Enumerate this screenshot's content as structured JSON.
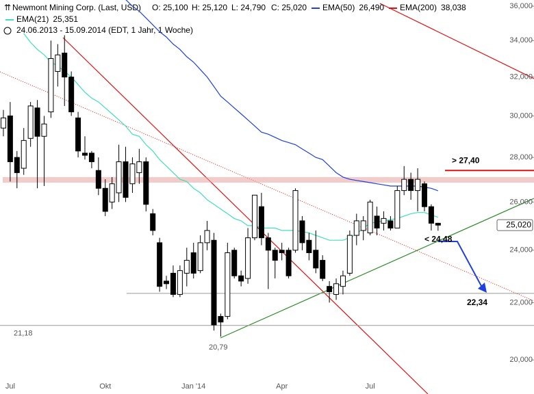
{
  "chart_data": {
    "type": "candlestick",
    "title": "Newmont Mining Corp. (Last, USD)",
    "ohlc_labels": [
      "O: 25,100",
      "H: 25,120",
      "L: 24,790",
      "C: 25,020"
    ],
    "subtitle": "24.06.2013 - 15.09.2014 (EDT, 1 Jahr, 1 Woche)",
    "categories": [
      null,
      "Jul",
      null,
      null,
      null,
      null,
      null,
      null,
      null,
      null,
      null,
      null,
      null,
      null,
      null,
      "Okt",
      null,
      null,
      null,
      null,
      null,
      null,
      null,
      null,
      null,
      null,
      null,
      null,
      "Jan '14",
      null,
      null,
      null,
      null,
      null,
      null,
      null,
      null,
      null,
      null,
      null,
      null,
      "Apr",
      null,
      null,
      null,
      null,
      null,
      null,
      null,
      null,
      null,
      null,
      null,
      null,
      "Jul",
      null,
      null,
      null,
      null,
      null,
      null,
      null,
      null,
      null,
      null
    ],
    "open": [
      29.4,
      30.0,
      28.0,
      27.5,
      28.9,
      30.4,
      29.0,
      30.2,
      32.3,
      33.3,
      32.0,
      29.9,
      28.2,
      28.2,
      27.4,
      26.6,
      26.0,
      26.4,
      27.8,
      26.8,
      27.3,
      27.8,
      25.5,
      24.3,
      22.8,
      23.1,
      22.3,
      23.1,
      23.9,
      23.2,
      24.3,
      24.4,
      21.5,
      21.5,
      24.0,
      23.0,
      22.9,
      24.5,
      25.8,
      24.5,
      24.0,
      24.0,
      24.0,
      24.0,
      25.2,
      24.4,
      24.0,
      23.6,
      22.6,
      22.3,
      22.6,
      23.1,
      24.6,
      24.8,
      24.7,
      25.4,
      25.1,
      25.2,
      24.9,
      26.5,
      27.0,
      26.5,
      26.8,
      25.8,
      25.1
    ],
    "high": [
      30.3,
      30.7,
      28.3,
      29.4,
      30.7,
      30.8,
      30.0,
      34.0,
      33.8,
      34.3,
      32.3,
      30.2,
      29.0,
      28.3,
      28.0,
      27.0,
      27.1,
      28.6,
      28.5,
      28.0,
      28.4,
      28.0,
      25.7,
      24.5,
      23.0,
      23.4,
      23.4,
      24.1,
      24.3,
      24.6,
      25.2,
      24.7,
      21.6,
      24.3,
      24.1,
      23.2,
      24.9,
      26.3,
      26.4,
      24.7,
      24.1,
      24.3,
      24.1,
      26.6,
      25.4,
      24.7,
      24.8,
      23.8,
      22.8,
      22.9,
      23.2,
      24.8,
      25.5,
      25.4,
      26.1,
      25.8,
      25.6,
      25.4,
      26.7,
      27.6,
      27.3,
      27.5,
      26.9,
      25.9,
      25.12
    ],
    "low": [
      29.0,
      26.9,
      26.6,
      27.2,
      28.5,
      26.6,
      26.7,
      29.9,
      31.5,
      30.5,
      30.0,
      28.0,
      27.9,
      27.5,
      26.3,
      25.4,
      25.7,
      26.0,
      26.0,
      26.4,
      26.8,
      25.6,
      24.6,
      22.4,
      22.5,
      22.2,
      22.2,
      22.6,
      22.9,
      23.1,
      24.0,
      21.0,
      20.79,
      21.4,
      22.9,
      22.6,
      22.7,
      24.4,
      24.2,
      22.5,
      22.9,
      23.6,
      22.9,
      23.9,
      24.0,
      23.6,
      23.1,
      22.8,
      22.0,
      22.1,
      22.3,
      23.0,
      24.2,
      24.4,
      24.6,
      24.6,
      24.8,
      24.8,
      24.9,
      26.3,
      26.1,
      25.6,
      25.6,
      24.8,
      24.79
    ],
    "close": [
      29.9,
      27.8,
      27.3,
      28.8,
      30.5,
      29.0,
      29.6,
      33.0,
      33.2,
      32.0,
      30.2,
      28.3,
      28.1,
      27.8,
      26.6,
      25.6,
      26.8,
      27.8,
      26.2,
      27.7,
      27.8,
      25.9,
      24.8,
      22.6,
      22.7,
      22.3,
      23.2,
      23.6,
      23.1,
      24.3,
      24.8,
      21.2,
      21.3,
      23.9,
      23.0,
      22.8,
      24.5,
      26.3,
      24.5,
      24.0,
      23.6,
      23.9,
      23.0,
      26.5,
      24.3,
      23.9,
      23.3,
      22.9,
      22.4,
      22.7,
      23.0,
      24.6,
      25.2,
      25.2,
      26.0,
      24.9,
      25.3,
      24.9,
      26.5,
      27.0,
      26.5,
      27.0,
      25.8,
      25.1,
      25.02
    ],
    "last_price_label": "25,020",
    "series": [
      {
        "name": "EMA(21)",
        "color": "#3fe0b8",
        "value_label": "25,351",
        "values": [
          null,
          null,
          null,
          34.4,
          33.9,
          33.5,
          33.2,
          32.8,
          32.6,
          32.3,
          32.0,
          31.6,
          31.2,
          30.9,
          30.7,
          30.4,
          30.1,
          29.8,
          29.5,
          29.1,
          29.0,
          28.6,
          28.3,
          27.9,
          27.6,
          27.3,
          27.0,
          26.9,
          26.6,
          26.4,
          26.1,
          25.9,
          25.7,
          25.5,
          25.3,
          25.2,
          25.0,
          25.0,
          24.9,
          24.9,
          24.9,
          24.8,
          24.8,
          24.8,
          24.75,
          24.7,
          24.6,
          24.5,
          24.4,
          24.4,
          24.4,
          24.5,
          24.65,
          24.9,
          25.1,
          25.15,
          25.2,
          25.25,
          25.3,
          25.4,
          25.5,
          25.55,
          25.55,
          25.45,
          25.351
        ]
      },
      {
        "name": "EMA(50)",
        "color": "#1f3fe0",
        "value_label": "26,490",
        "values": [
          null,
          null,
          null,
          null,
          null,
          null,
          null,
          null,
          null,
          null,
          null,
          null,
          null,
          null,
          null,
          null,
          null,
          null,
          36.4,
          36.0,
          35.7,
          35.3,
          34.9,
          34.5,
          34.2,
          33.8,
          33.5,
          33.1,
          32.8,
          32.4,
          32.0,
          31.5,
          31.0,
          30.7,
          30.4,
          30.1,
          29.8,
          29.5,
          29.2,
          29.1,
          28.95,
          28.8,
          28.7,
          28.6,
          28.4,
          28.2,
          28.0,
          27.9,
          27.6,
          27.3,
          27.1,
          27.0,
          26.95,
          26.9,
          26.85,
          26.8,
          26.75,
          26.7,
          26.7,
          26.7,
          26.7,
          26.7,
          26.65,
          26.6,
          26.49
        ]
      }
    ],
    "legend_extra": {
      "name": "EMA(200)",
      "color": "#e01010",
      "value_label": "38,038"
    },
    "resistance_zone": [
      26.85,
      27.1
    ],
    "annotations": [
      {
        "text": "> 27,40",
        "value": 27.4,
        "color": "#e01010"
      },
      {
        "text": "< 24,48",
        "value": 24.48,
        "color": "#1f3fe0"
      },
      {
        "text": "22,34",
        "value": 22.34,
        "color": "#1f3fe0"
      },
      {
        "text": "21,18",
        "value": 21.18,
        "color": "#888888"
      },
      {
        "text": "20,79",
        "value": 20.79,
        "color": "#888888"
      }
    ],
    "log_scale": true,
    "ylim": [
      18.9,
      36.37
    ],
    "yticks": [
      {
        "value": 20,
        "label": "20,000"
      },
      {
        "value": 22,
        "label": "22,000"
      },
      {
        "value": 24,
        "label": "24,000"
      },
      {
        "value": 26,
        "label": "26,000"
      },
      {
        "value": 28,
        "label": "28,000"
      },
      {
        "value": 30,
        "label": "30,000"
      },
      {
        "value": 32,
        "label": "32,000"
      },
      {
        "value": 34,
        "label": "34,000"
      },
      {
        "value": 36,
        "label": "36,000"
      }
    ],
    "grid": false
  }
}
